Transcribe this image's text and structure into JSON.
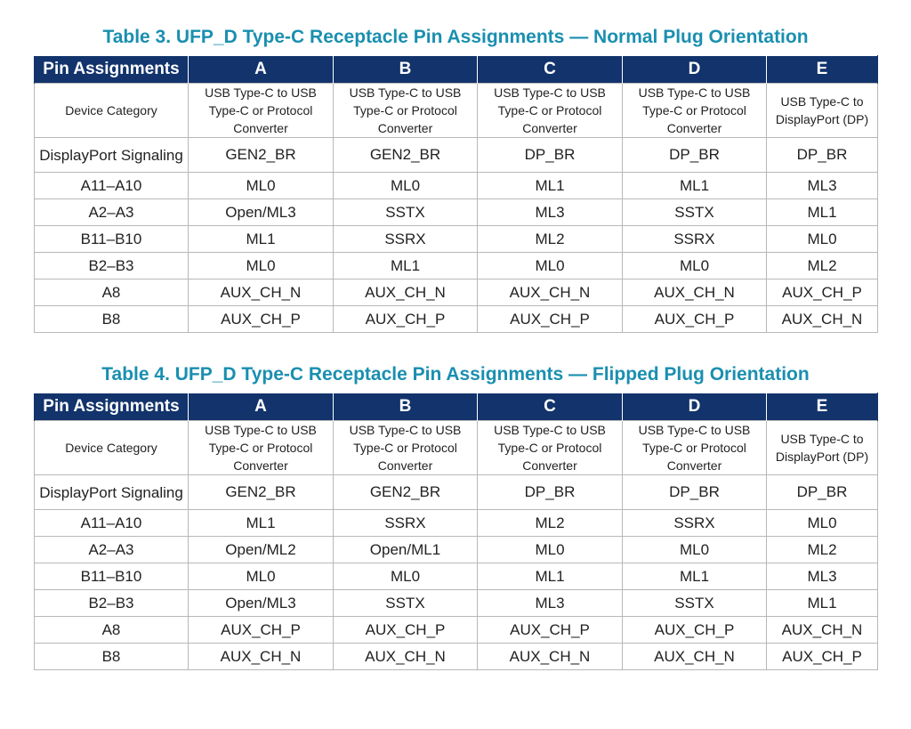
{
  "tables": [
    {
      "title": "Table 3. UFP_D Type-C Receptacle Pin Assignments — Normal Plug Orientation",
      "headers": [
        "Pin Assignments",
        "A",
        "B",
        "C",
        "D",
        "E"
      ],
      "rows": [
        {
          "label": "Device Category",
          "cells": [
            "USB Type-C to USB Type-C or Protocol Converter",
            "USB Type-C to USB Type-C or Protocol Converter",
            "USB Type-C to USB Type-C or Protocol Converter",
            "USB Type-C to USB Type-C or Protocol Converter",
            "USB Type-C to DisplayPort (DP)"
          ]
        },
        {
          "label": "DisplayPort Signaling",
          "cells": [
            "GEN2_BR",
            "GEN2_BR",
            "DP_BR",
            "DP_BR",
            "DP_BR"
          ]
        },
        {
          "label": "A11–A10",
          "cells": [
            "ML0",
            "ML0",
            "ML1",
            "ML1",
            "ML3"
          ]
        },
        {
          "label": "A2–A3",
          "cells": [
            "Open/ML3",
            "SSTX",
            "ML3",
            "SSTX",
            "ML1"
          ]
        },
        {
          "label": "B11–B10",
          "cells": [
            "ML1",
            "SSRX",
            "ML2",
            "SSRX",
            "ML0"
          ]
        },
        {
          "label": "B2–B3",
          "cells": [
            "ML0",
            "ML1",
            "ML0",
            "ML0",
            "ML2"
          ]
        },
        {
          "label": "A8",
          "cells": [
            "AUX_CH_N",
            "AUX_CH_N",
            "AUX_CH_N",
            "AUX_CH_N",
            "AUX_CH_P"
          ]
        },
        {
          "label": "B8",
          "cells": [
            "AUX_CH_P",
            "AUX_CH_P",
            "AUX_CH_P",
            "AUX_CH_P",
            "AUX_CH_N"
          ]
        }
      ]
    },
    {
      "title": "Table 4. UFP_D Type-C Receptacle Pin Assignments — Flipped Plug Orientation",
      "headers": [
        "Pin Assignments",
        "A",
        "B",
        "C",
        "D",
        "E"
      ],
      "rows": [
        {
          "label": "Device Category",
          "cells": [
            "USB Type-C to USB Type-C or Protocol Converter",
            "USB Type-C to USB Type-C or Protocol Converter",
            "USB Type-C to USB Type-C or Protocol Converter",
            "USB Type-C to USB Type-C or Protocol Converter",
            "USB Type-C to DisplayPort (DP)"
          ]
        },
        {
          "label": "DisplayPort Signaling",
          "cells": [
            "GEN2_BR",
            "GEN2_BR",
            "DP_BR",
            "DP_BR",
            "DP_BR"
          ]
        },
        {
          "label": "A11–A10",
          "cells": [
            "ML1",
            "SSRX",
            "ML2",
            "SSRX",
            "ML0"
          ]
        },
        {
          "label": "A2–A3",
          "cells": [
            "Open/ML2",
            "Open/ML1",
            "ML0",
            "ML0",
            "ML2"
          ]
        },
        {
          "label": "B11–B10",
          "cells": [
            "ML0",
            "ML0",
            "ML1",
            "ML1",
            "ML3"
          ]
        },
        {
          "label": "B2–B3",
          "cells": [
            "Open/ML3",
            "SSTX",
            "ML3",
            "SSTX",
            "ML1"
          ]
        },
        {
          "label": "A8",
          "cells": [
            "AUX_CH_P",
            "AUX_CH_P",
            "AUX_CH_P",
            "AUX_CH_P",
            "AUX_CH_N"
          ]
        },
        {
          "label": "B8",
          "cells": [
            "AUX_CH_N",
            "AUX_CH_N",
            "AUX_CH_N",
            "AUX_CH_N",
            "AUX_CH_P"
          ]
        }
      ]
    }
  ],
  "colors": {
    "title": "#1a8fb0",
    "header_bg": "#12336b",
    "header_text": "#ffffff",
    "grid": "#b8b8b8"
  }
}
